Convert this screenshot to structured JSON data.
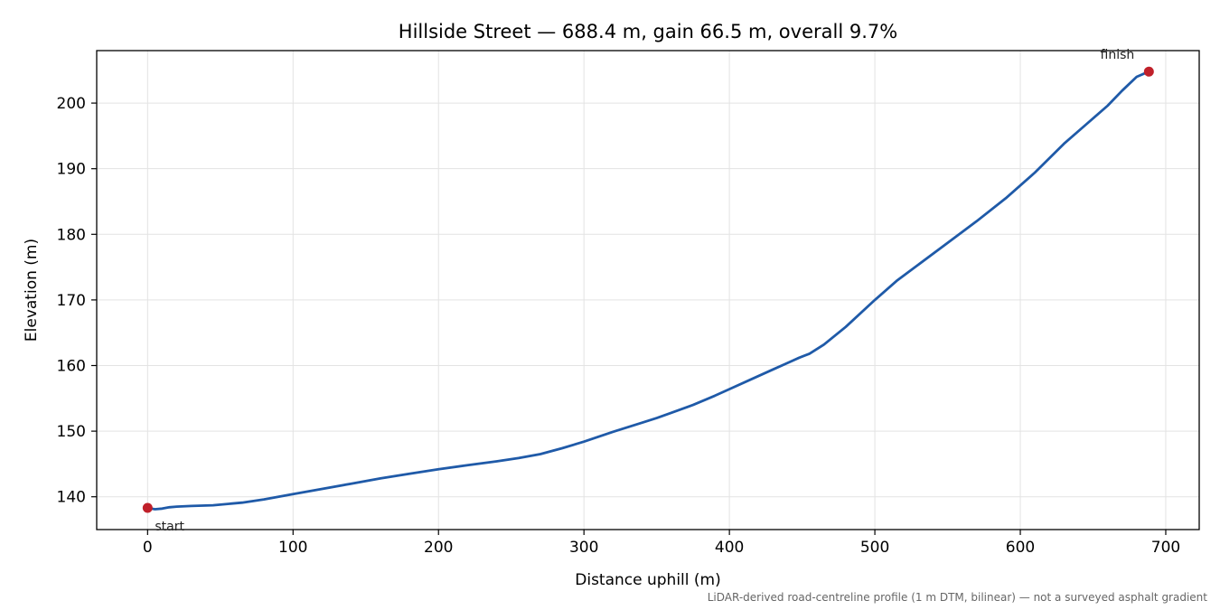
{
  "chart_data": {
    "type": "line",
    "title": "Hillside Street — 688.4 m, gain 66.5 m, overall 9.7%",
    "xlabel": "Distance uphill (m)",
    "ylabel": "Elevation (m)",
    "xlim": [
      -35,
      723
    ],
    "ylim": [
      135,
      208
    ],
    "xticks": [
      0,
      100,
      200,
      300,
      400,
      500,
      600,
      700
    ],
    "yticks": [
      140,
      150,
      160,
      170,
      180,
      190,
      200
    ],
    "grid": true,
    "line_color": "#1f5aa8",
    "marker_color": "#c0202a",
    "series": [
      {
        "x": [
          0,
          5,
          10,
          15,
          20,
          30,
          45,
          65,
          80,
          100,
          120,
          140,
          160,
          180,
          200,
          220,
          240,
          255,
          270,
          285,
          300,
          320,
          340,
          350,
          360,
          375,
          390,
          400,
          415,
          430,
          440,
          448,
          455,
          465,
          480,
          500,
          515,
          530,
          550,
          570,
          590,
          610,
          630,
          645,
          660,
          670,
          680,
          688.4
        ],
        "y": [
          138.3,
          138.1,
          138.2,
          138.4,
          138.5,
          138.6,
          138.7,
          139.1,
          139.6,
          140.4,
          141.2,
          142.0,
          142.8,
          143.5,
          144.2,
          144.8,
          145.4,
          145.9,
          146.5,
          147.4,
          148.4,
          149.9,
          151.3,
          152.0,
          152.8,
          154.0,
          155.4,
          156.4,
          157.9,
          159.4,
          160.4,
          161.2,
          161.8,
          163.2,
          165.9,
          170.0,
          172.9,
          175.4,
          178.7,
          182.0,
          185.5,
          189.4,
          193.8,
          196.7,
          199.6,
          201.9,
          204.0,
          204.8
        ]
      }
    ],
    "annotations": {
      "start": {
        "label": "start",
        "x": 0,
        "y": 138.3
      },
      "finish": {
        "label": "finish",
        "x": 688.4,
        "y": 204.8
      }
    },
    "footnote": "LiDAR-derived road-centreline profile (1 m DTM, bilinear) — not a surveyed asphalt gradient"
  }
}
